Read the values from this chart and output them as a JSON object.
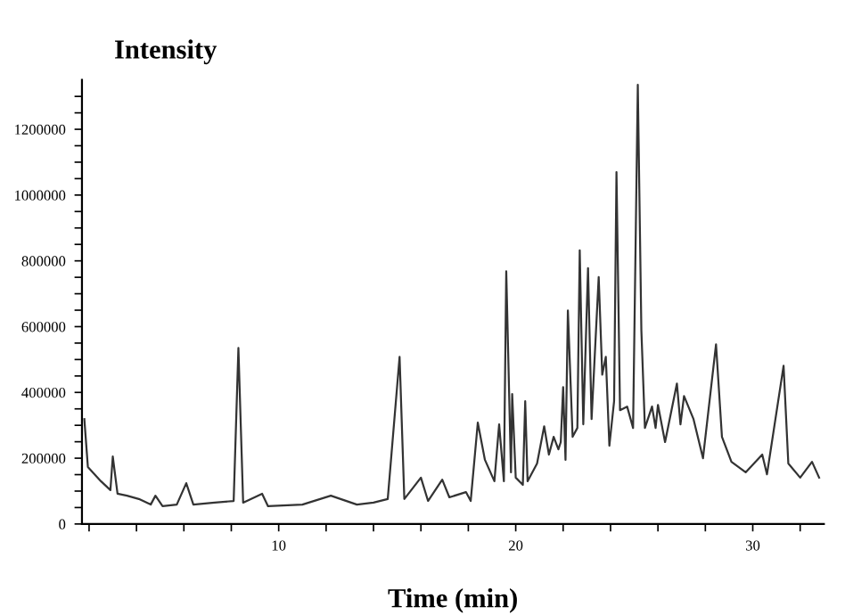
{
  "chart_data": {
    "type": "line",
    "ylabel": "Intensity",
    "xlabel": "Time (min)",
    "xlim": [
      1.7,
      33
    ],
    "ylim": [
      0,
      1350000
    ],
    "xticks": [
      {
        "value": 2,
        "label": null
      },
      {
        "value": 4,
        "label": null
      },
      {
        "value": 6,
        "label": null
      },
      {
        "value": 8,
        "label": null
      },
      10,
      {
        "value": 12,
        "label": null
      },
      {
        "value": 14,
        "label": null
      },
      {
        "value": 16,
        "label": null
      },
      {
        "value": 18,
        "label": null
      },
      20,
      {
        "value": 22,
        "label": null
      },
      {
        "value": 24,
        "label": null
      },
      {
        "value": 26,
        "label": null
      },
      {
        "value": 28,
        "label": null
      },
      30,
      {
        "value": 32,
        "label": null
      }
    ],
    "yticks": [
      0,
      {
        "value": 50000,
        "label": null
      },
      {
        "value": 100000,
        "label": null
      },
      {
        "value": 150000,
        "label": null
      },
      200000,
      {
        "value": 250000,
        "label": null
      },
      {
        "value": 300000,
        "label": null
      },
      {
        "value": 350000,
        "label": null
      },
      400000,
      {
        "value": 450000,
        "label": null
      },
      {
        "value": 500000,
        "label": null
      },
      {
        "value": 550000,
        "label": null
      },
      600000,
      {
        "value": 650000,
        "label": null
      },
      {
        "value": 700000,
        "label": null
      },
      {
        "value": 750000,
        "label": null
      },
      800000,
      {
        "value": 850000,
        "label": null
      },
      {
        "value": 900000,
        "label": null
      },
      {
        "value": 950000,
        "label": null
      },
      1000000,
      {
        "value": 1050000,
        "label": null
      },
      {
        "value": 1100000,
        "label": null
      },
      {
        "value": 1150000,
        "label": null
      },
      1200000,
      {
        "value": 1250000,
        "label": null
      },
      {
        "value": 1300000,
        "label": null
      }
    ],
    "grid": false,
    "legend": false,
    "marker": "none",
    "line_style": "solid",
    "series": [
      {
        "color": "#333333",
        "x": [
          1.8,
          1.95,
          2.5,
          2.9,
          3.0,
          3.2,
          3.6,
          4.1,
          4.6,
          4.8,
          5.1,
          5.7,
          6.1,
          6.4,
          7.3,
          8.1,
          8.3,
          8.5,
          9.3,
          9.55,
          11,
          12.2,
          13.3,
          14,
          14.6,
          15.1,
          15.3,
          16.0,
          16.3,
          16.9,
          17.2,
          17.9,
          18.1,
          18.4,
          18.7,
          19.1,
          19.3,
          19.5,
          19.6,
          19.8,
          19.85,
          20,
          20.3,
          20.4,
          20.5,
          20.9,
          21.2,
          21.4,
          21.6,
          21.8,
          21.9,
          22.0,
          22.1,
          22.2,
          22.4,
          22.6,
          22.7,
          22.85,
          23.05,
          23.2,
          23.5,
          23.65,
          23.8,
          23.95,
          24.15,
          24.25,
          24.4,
          24.7,
          24.95,
          25.15,
          25.3,
          25.45,
          25.75,
          25.9,
          26.0,
          26.3,
          26.8,
          26.95,
          27.1,
          27.5,
          27.9,
          28.45,
          28.7,
          29.1,
          29.7,
          30.4,
          30.6,
          31.3,
          31.5,
          32.0,
          32.5,
          32.8
        ],
        "values": [
          319000,
          173000,
          130000,
          103000,
          205000,
          92000,
          86000,
          76000,
          59000,
          86000,
          54000,
          59000,
          124000,
          59000,
          65000,
          70000,
          535000,
          65000,
          92000,
          54000,
          59000,
          86000,
          59000,
          65000,
          76000,
          508000,
          76000,
          141000,
          70000,
          135000,
          81000,
          97000,
          70000,
          308000,
          195000,
          130000,
          303000,
          130000,
          768000,
          157000,
          395000,
          141000,
          119000,
          373000,
          130000,
          184000,
          297000,
          211000,
          265000,
          227000,
          249000,
          416000,
          195000,
          649000,
          265000,
          292000,
          832000,
          303000,
          778000,
          319000,
          751000,
          454000,
          508000,
          238000,
          373000,
          1070000,
          346000,
          357000,
          292000,
          1335000,
          589000,
          292000,
          357000,
          292000,
          362000,
          249000,
          427000,
          303000,
          389000,
          319000,
          200000,
          546000,
          265000,
          189000,
          157000,
          211000,
          151000,
          481000,
          184000,
          141000,
          189000,
          141000
        ]
      }
    ]
  }
}
